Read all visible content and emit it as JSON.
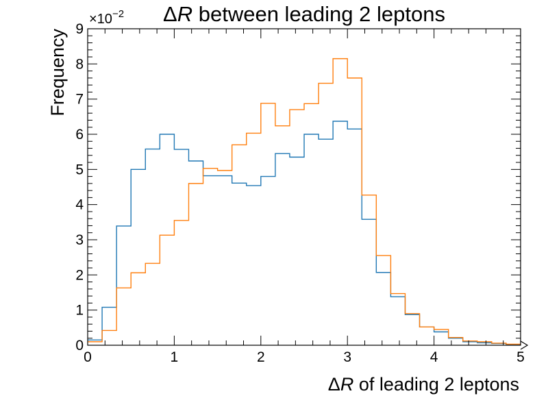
{
  "chart_data": {
    "type": "histogram",
    "title_prefix": "Δ",
    "title_var": "R",
    "title_rest": " between leading 2 leptons",
    "xlabel_prefix": "Δ",
    "xlabel_var": "R",
    "xlabel_rest": " of leading 2 leptons",
    "ylabel": "Frequency",
    "y_multiplier_base": "×10",
    "y_multiplier_exp": "−2",
    "xlim": [
      0,
      5
    ],
    "ylim": [
      0,
      9
    ],
    "x_ticks": [
      "0",
      "1",
      "2",
      "3",
      "4",
      "5"
    ],
    "y_ticks": [
      "0",
      "1",
      "2",
      "3",
      "4",
      "5",
      "6",
      "7",
      "8",
      "9"
    ],
    "bin_edges": [
      0,
      0.1667,
      0.3333,
      0.5,
      0.6667,
      0.8333,
      1.0,
      1.1667,
      1.3333,
      1.5,
      1.6667,
      1.8333,
      2.0,
      2.1667,
      2.3333,
      2.5,
      2.6667,
      2.8333,
      3.0,
      3.1667,
      3.3333,
      3.5,
      3.6667,
      3.8333,
      4.0,
      4.1667,
      4.3333,
      4.5,
      4.6667,
      4.8333,
      5.0
    ],
    "series": [
      {
        "color": "#1f77b4",
        "values": [
          0.15,
          1.08,
          3.39,
          5.0,
          5.58,
          6.0,
          5.57,
          5.24,
          4.82,
          4.82,
          4.61,
          4.54,
          4.8,
          5.45,
          5.35,
          6.0,
          5.86,
          6.37,
          6.15,
          3.58,
          2.07,
          1.38,
          0.87,
          0.52,
          0.38,
          0.2,
          0.1,
          0.07,
          0.05,
          0.02
        ]
      },
      {
        "color": "#ff7f0e",
        "values": [
          0.1,
          0.42,
          1.63,
          2.06,
          2.33,
          3.13,
          3.55,
          4.6,
          5.03,
          4.97,
          5.7,
          6.03,
          6.88,
          6.24,
          6.7,
          6.87,
          7.45,
          8.15,
          7.6,
          4.27,
          2.55,
          1.47,
          0.9,
          0.52,
          0.45,
          0.22,
          0.12,
          0.1,
          0.06,
          0.03
        ]
      }
    ]
  }
}
